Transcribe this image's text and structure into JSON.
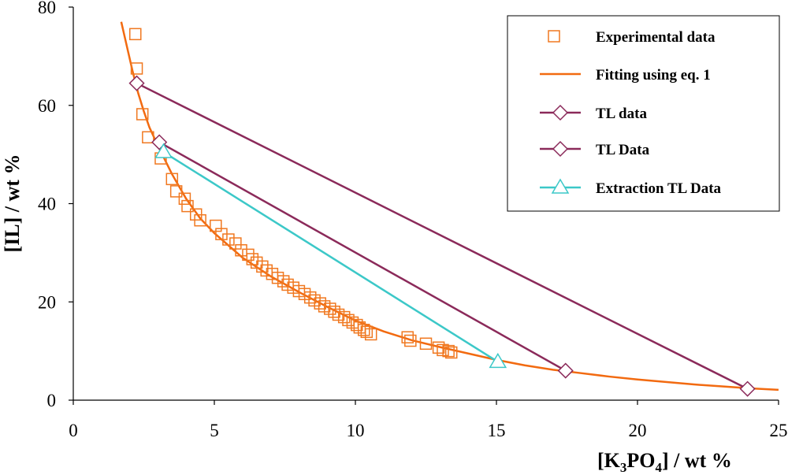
{
  "chart_data": {
    "type": "scatter",
    "xlabel_parts": [
      "[K",
      "3",
      "PO",
      "4",
      "] / wt %"
    ],
    "ylabel": "[IL] / wt %",
    "xlim": [
      0,
      25
    ],
    "ylim": [
      0,
      80
    ],
    "xticks": [
      0,
      5,
      10,
      15,
      20,
      25
    ],
    "yticks": [
      0,
      20,
      40,
      60,
      80
    ],
    "tick_labels_x": [
      "0",
      "5",
      "10",
      "15",
      "20",
      "25"
    ],
    "tick_labels_y": [
      "0",
      "20",
      "40",
      "60",
      "80"
    ],
    "grid": false,
    "legend_position": "top-right",
    "colors": {
      "experimental": "#F07820",
      "fitting": "#F26A10",
      "tl": "#8B2A5A",
      "extraction": "#3CC8C8"
    },
    "series": [
      {
        "name": "Experimental data",
        "kind": "markers",
        "marker": "square",
        "points": [
          [
            2.2,
            74.5
          ],
          [
            2.25,
            67.5
          ],
          [
            2.45,
            58.2
          ],
          [
            2.65,
            53.5
          ],
          [
            3.1,
            49.2
          ],
          [
            3.5,
            45.0
          ],
          [
            3.65,
            42.5
          ],
          [
            3.95,
            41.0
          ],
          [
            4.05,
            39.5
          ],
          [
            4.35,
            37.8
          ],
          [
            4.5,
            36.6
          ],
          [
            5.05,
            35.5
          ],
          [
            5.25,
            33.8
          ],
          [
            5.5,
            32.7
          ],
          [
            5.75,
            31.9
          ],
          [
            5.95,
            30.5
          ],
          [
            6.2,
            29.6
          ],
          [
            6.35,
            28.7
          ],
          [
            6.5,
            28.0
          ],
          [
            6.7,
            27.2
          ],
          [
            6.85,
            26.4
          ],
          [
            7.05,
            25.7
          ],
          [
            7.25,
            24.9
          ],
          [
            7.45,
            24.2
          ],
          [
            7.6,
            23.5
          ],
          [
            7.8,
            22.9
          ],
          [
            8.0,
            22.2
          ],
          [
            8.2,
            21.6
          ],
          [
            8.4,
            20.9
          ],
          [
            8.55,
            20.3
          ],
          [
            8.75,
            19.7
          ],
          [
            8.9,
            19.1
          ],
          [
            9.1,
            18.6
          ],
          [
            9.25,
            18.0
          ],
          [
            9.4,
            17.4
          ],
          [
            9.6,
            16.9
          ],
          [
            9.75,
            16.3
          ],
          [
            9.9,
            15.8
          ],
          [
            10.05,
            15.3
          ],
          [
            10.15,
            14.8
          ],
          [
            10.3,
            14.3
          ],
          [
            10.4,
            13.9
          ],
          [
            10.55,
            13.4
          ],
          [
            11.85,
            12.8
          ],
          [
            11.95,
            12.1
          ],
          [
            12.5,
            11.5
          ],
          [
            12.95,
            10.7
          ],
          [
            13.1,
            10.2
          ],
          [
            13.3,
            10.0
          ],
          [
            13.4,
            9.7
          ]
        ]
      },
      {
        "name": "Fitting using eq. 1",
        "kind": "line",
        "points": [
          [
            1.7,
            77.0
          ],
          [
            1.9,
            72.0
          ],
          [
            2.1,
            67.0
          ],
          [
            2.3,
            62.5
          ],
          [
            2.5,
            58.8
          ],
          [
            2.7,
            55.5
          ],
          [
            3.0,
            51.8
          ],
          [
            3.5,
            46.0
          ],
          [
            4.0,
            41.0
          ],
          [
            4.5,
            37.0
          ],
          [
            5.0,
            34.0
          ],
          [
            6.0,
            29.0
          ],
          [
            7.0,
            25.2
          ],
          [
            8.0,
            22.0
          ],
          [
            9.0,
            19.0
          ],
          [
            10.0,
            16.2
          ],
          [
            11.0,
            14.0
          ],
          [
            12.0,
            12.2
          ],
          [
            13.0,
            10.8
          ],
          [
            14.0,
            9.5
          ],
          [
            15.0,
            8.2
          ],
          [
            16.0,
            7.1
          ],
          [
            17.0,
            6.2
          ],
          [
            18.0,
            5.5
          ],
          [
            19.0,
            4.8
          ],
          [
            20.0,
            4.2
          ],
          [
            21.0,
            3.7
          ],
          [
            22.0,
            3.2
          ],
          [
            23.0,
            2.8
          ],
          [
            24.0,
            2.4
          ],
          [
            25.0,
            2.1
          ]
        ]
      },
      {
        "name": "TL data",
        "kind": "line-markers",
        "marker": "diamond",
        "points": [
          [
            2.25,
            64.5
          ],
          [
            23.9,
            2.3
          ]
        ]
      },
      {
        "name": "TL Data",
        "kind": "line-markers",
        "marker": "diamond",
        "points": [
          [
            3.05,
            52.5
          ],
          [
            17.45,
            6.0
          ]
        ]
      },
      {
        "name": "Extraction TL Data",
        "kind": "line-markers",
        "marker": "triangle",
        "points": [
          [
            3.2,
            50.5
          ],
          [
            15.05,
            7.8
          ]
        ]
      }
    ]
  }
}
